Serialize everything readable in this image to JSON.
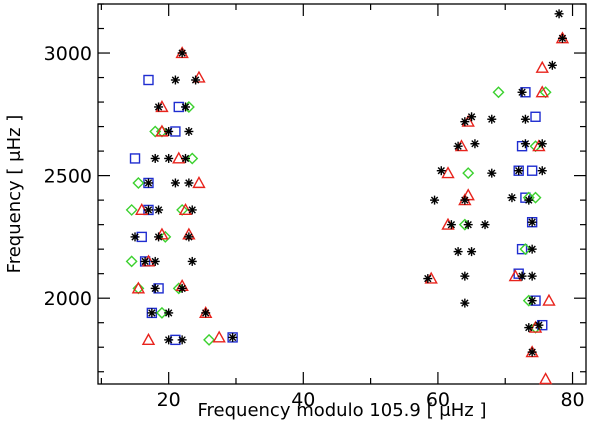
{
  "chart_data": {
    "type": "scatter",
    "xlabel": "Frequency modulo 105.9 [ μHz ]",
    "ylabel": "Frequency [ μHz ]",
    "xlim": [
      9.5,
      82
    ],
    "ylim": [
      1650,
      3200
    ],
    "xticks": [
      20,
      40,
      60,
      80
    ],
    "yticks": [
      2000,
      2500,
      3000
    ],
    "xticks_labels": [
      "20",
      "40",
      "60",
      "80"
    ],
    "yticks_labels": [
      "2000",
      "2500",
      "3000"
    ],
    "grid": false,
    "legend": "none",
    "series": [
      {
        "marker": "asterisk",
        "color": "#000000",
        "points": [
          [
            22,
            3000
          ],
          [
            21,
            2890
          ],
          [
            24,
            2890
          ],
          [
            18.5,
            2780
          ],
          [
            22.5,
            2780
          ],
          [
            20,
            2680
          ],
          [
            23,
            2680
          ],
          [
            18,
            2570
          ],
          [
            20,
            2570
          ],
          [
            22.5,
            2570
          ],
          [
            17,
            2470
          ],
          [
            21,
            2470
          ],
          [
            23,
            2470
          ],
          [
            17,
            2360
          ],
          [
            18.5,
            2360
          ],
          [
            23.5,
            2360
          ],
          [
            15,
            2250
          ],
          [
            18.5,
            2250
          ],
          [
            23,
            2250
          ],
          [
            16.5,
            2150
          ],
          [
            18,
            2150
          ],
          [
            23.5,
            2150
          ],
          [
            18,
            2040
          ],
          [
            22,
            2040
          ],
          [
            17.5,
            1940
          ],
          [
            20,
            1940
          ],
          [
            25.5,
            1940
          ],
          [
            20,
            1830
          ],
          [
            22,
            1830
          ],
          [
            29.5,
            1840
          ],
          [
            78,
            3160
          ],
          [
            78.5,
            3060
          ],
          [
            77,
            2950
          ],
          [
            72.5,
            2840
          ],
          [
            68,
            2730
          ],
          [
            64,
            2720
          ],
          [
            73,
            2730
          ],
          [
            65,
            2740
          ],
          [
            63,
            2620
          ],
          [
            65.5,
            2630
          ],
          [
            73,
            2630
          ],
          [
            75.5,
            2630
          ],
          [
            60.5,
            2520
          ],
          [
            72,
            2520
          ],
          [
            75.5,
            2520
          ],
          [
            68,
            2510
          ],
          [
            59.5,
            2400
          ],
          [
            64,
            2400
          ],
          [
            73.5,
            2400
          ],
          [
            71,
            2410
          ],
          [
            64.5,
            2300
          ],
          [
            67,
            2300
          ],
          [
            62,
            2300
          ],
          [
            74,
            2310
          ],
          [
            63,
            2190
          ],
          [
            65,
            2190
          ],
          [
            74,
            2200
          ],
          [
            58.5,
            2080
          ],
          [
            64,
            2090
          ],
          [
            72.5,
            2090
          ],
          [
            74,
            2090
          ],
          [
            64,
            1980
          ],
          [
            74,
            1990
          ],
          [
            73.5,
            1880
          ],
          [
            75,
            1890
          ],
          [
            74,
            1780
          ]
        ]
      },
      {
        "marker": "triangle",
        "color": "#e8231c",
        "points": [
          [
            22,
            3000
          ],
          [
            24.5,
            2900
          ],
          [
            19,
            2780
          ],
          [
            19,
            2680
          ],
          [
            21.5,
            2570
          ],
          [
            24.5,
            2470
          ],
          [
            16,
            2360
          ],
          [
            22.5,
            2360
          ],
          [
            19,
            2260
          ],
          [
            23,
            2260
          ],
          [
            17,
            2150
          ],
          [
            15.5,
            2040
          ],
          [
            22,
            2050
          ],
          [
            25.5,
            1940
          ],
          [
            17,
            1830
          ],
          [
            27.5,
            1840
          ],
          [
            78.5,
            3060
          ],
          [
            75.5,
            2940
          ],
          [
            75.5,
            2840
          ],
          [
            64.5,
            2720
          ],
          [
            63.5,
            2620
          ],
          [
            75,
            2620
          ],
          [
            61.5,
            2510
          ],
          [
            64,
            2400
          ],
          [
            64.5,
            2420
          ],
          [
            61.5,
            2300
          ],
          [
            59,
            2080
          ],
          [
            71.5,
            2090
          ],
          [
            76.5,
            1990
          ],
          [
            74.5,
            1880
          ],
          [
            74,
            1780
          ],
          [
            76,
            1670
          ]
        ]
      },
      {
        "marker": "square",
        "color": "#1f2dd0",
        "points": [
          [
            17,
            2890
          ],
          [
            21.5,
            2780
          ],
          [
            21,
            2680
          ],
          [
            15,
            2570
          ],
          [
            17,
            2470
          ],
          [
            17,
            2360
          ],
          [
            16,
            2250
          ],
          [
            16.5,
            2150
          ],
          [
            18.5,
            2040
          ],
          [
            17.5,
            1940
          ],
          [
            21,
            1830
          ],
          [
            29.5,
            1840
          ],
          [
            73,
            2840
          ],
          [
            74.5,
            2740
          ],
          [
            72.5,
            2620
          ],
          [
            72,
            2520
          ],
          [
            74,
            2520
          ],
          [
            73,
            2410
          ],
          [
            74,
            2310
          ],
          [
            72.5,
            2200
          ],
          [
            72,
            2100
          ],
          [
            74.5,
            1990
          ],
          [
            75.5,
            1890
          ]
        ]
      },
      {
        "marker": "diamond",
        "color": "#3bd12e",
        "points": [
          [
            23,
            2780
          ],
          [
            18,
            2680
          ],
          [
            19,
            2680
          ],
          [
            23.5,
            2570
          ],
          [
            15.5,
            2470
          ],
          [
            22,
            2360
          ],
          [
            14.5,
            2360
          ],
          [
            19.5,
            2250
          ],
          [
            14.5,
            2150
          ],
          [
            15.5,
            2040
          ],
          [
            21.5,
            2040
          ],
          [
            26,
            1830
          ],
          [
            19,
            1940
          ],
          [
            69,
            2840
          ],
          [
            76,
            2840
          ],
          [
            74.5,
            2620
          ],
          [
            64.5,
            2510
          ],
          [
            64,
            2300
          ],
          [
            73.5,
            2410
          ],
          [
            74.5,
            2410
          ],
          [
            73,
            2200
          ],
          [
            73.5,
            1990
          ],
          [
            74.5,
            1880
          ]
        ]
      }
    ]
  }
}
